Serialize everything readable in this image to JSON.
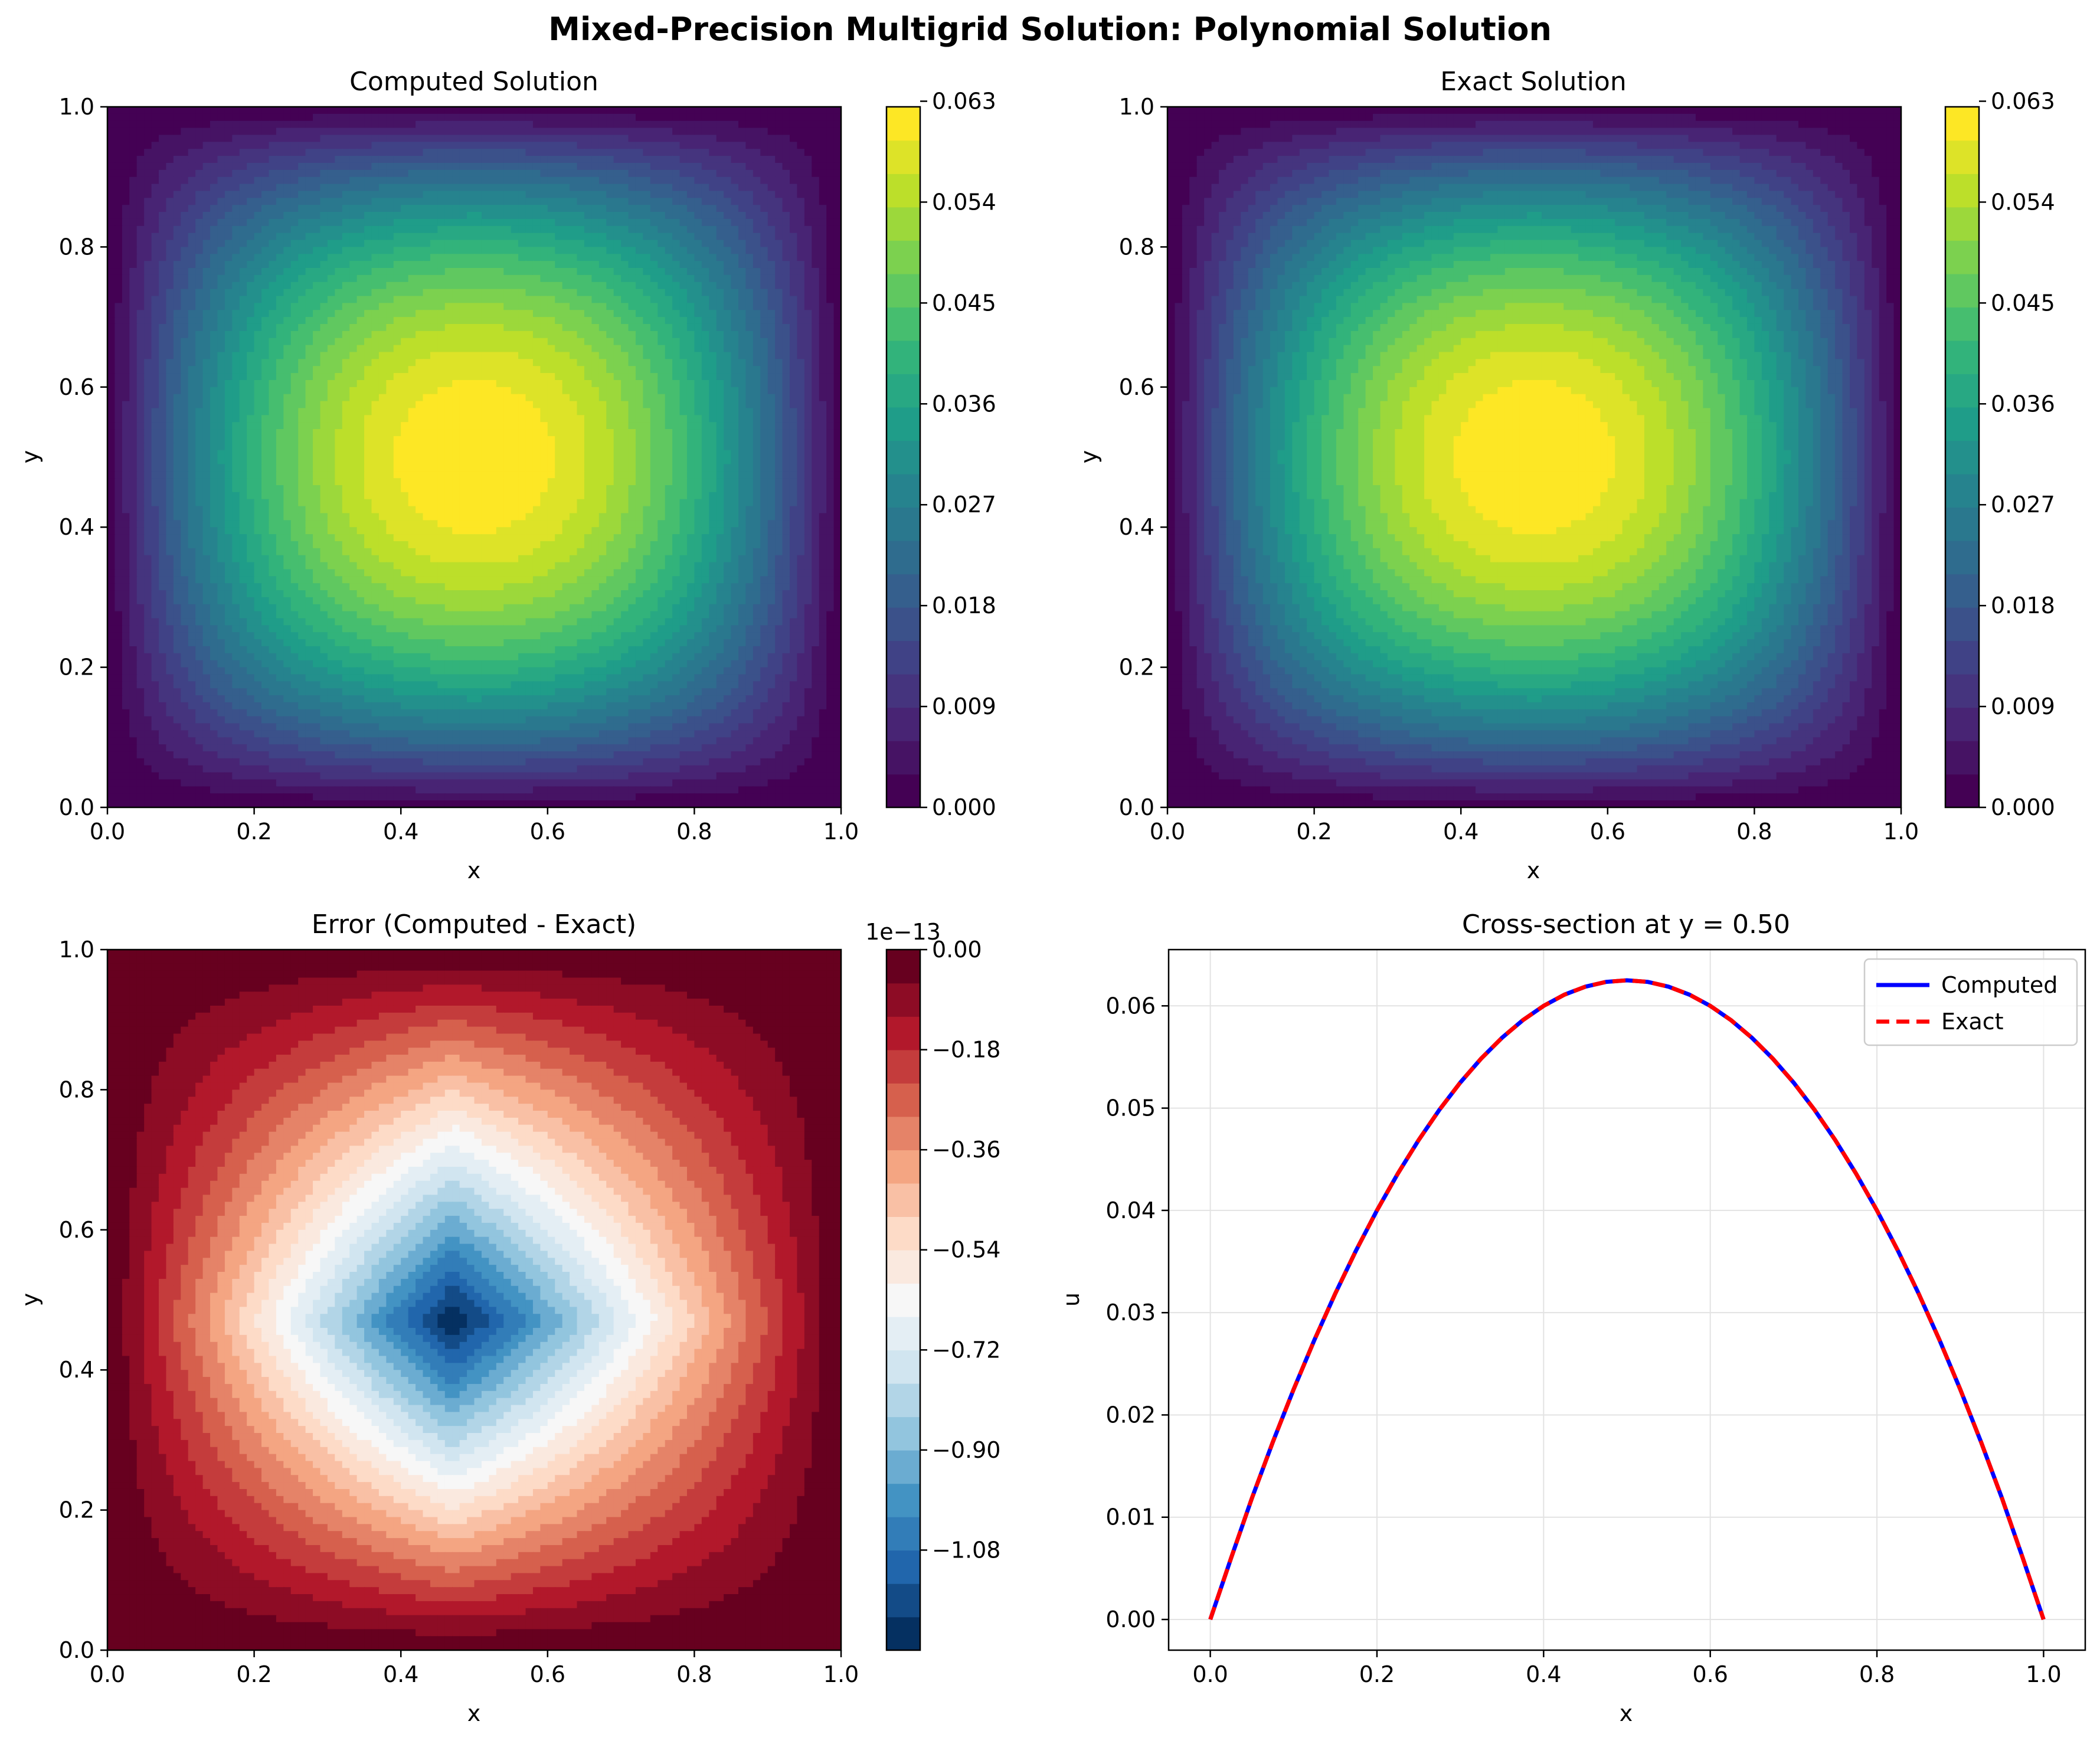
{
  "figure_title": "Mixed-Precision Multigrid Solution: Polynomial Solution",
  "chart_data": [
    {
      "type": "heatmap",
      "title": "Computed Solution",
      "xlabel": "x",
      "ylabel": "y",
      "xlim": [
        0,
        1
      ],
      "ylim": [
        0,
        1
      ],
      "x_ticks": [
        "0.0",
        "0.2",
        "0.4",
        "0.6",
        "0.8",
        "1.0"
      ],
      "y_ticks": [
        "0.0",
        "0.2",
        "0.4",
        "0.6",
        "0.8",
        "1.0"
      ],
      "function": "x(1-x)y(1-y)",
      "colormap": "viridis",
      "levels": 21,
      "value_range": [
        0,
        0.0625
      ],
      "colorbar_ticks": [
        "0.000",
        "0.009",
        "0.018",
        "0.027",
        "0.036",
        "0.045",
        "0.054",
        "0.063"
      ],
      "colorbar_tick_values": [
        0,
        0.009,
        0.018,
        0.027,
        0.036,
        0.045,
        0.054,
        0.063
      ]
    },
    {
      "type": "heatmap",
      "title": "Exact Solution",
      "xlabel": "x",
      "ylabel": "y",
      "xlim": [
        0,
        1
      ],
      "ylim": [
        0,
        1
      ],
      "x_ticks": [
        "0.0",
        "0.2",
        "0.4",
        "0.6",
        "0.8",
        "1.0"
      ],
      "y_ticks": [
        "0.0",
        "0.2",
        "0.4",
        "0.6",
        "0.8",
        "1.0"
      ],
      "function": "x(1-x)y(1-y)",
      "colormap": "viridis",
      "levels": 21,
      "value_range": [
        0,
        0.0625
      ],
      "colorbar_ticks": [
        "0.000",
        "0.009",
        "0.018",
        "0.027",
        "0.036",
        "0.045",
        "0.054",
        "0.063"
      ],
      "colorbar_tick_values": [
        0,
        0.009,
        0.018,
        0.027,
        0.036,
        0.045,
        0.054,
        0.063
      ]
    },
    {
      "type": "heatmap",
      "title": "Error (Computed - Exact)",
      "xlabel": "x",
      "ylabel": "y",
      "xlim": [
        0,
        1
      ],
      "ylim": [
        0,
        1
      ],
      "x_ticks": [
        "0.0",
        "0.2",
        "0.4",
        "0.6",
        "0.8",
        "1.0"
      ],
      "y_ticks": [
        "0.0",
        "0.2",
        "0.4",
        "0.6",
        "0.8",
        "1.0"
      ],
      "colormap": "RdBu",
      "levels": 21,
      "minimum_location": [
        0.47,
        0.47
      ],
      "value_range": [
        -1.26,
        0
      ],
      "colorbar_offset": "1e−13",
      "colorbar_ticks": [
        "0.00",
        "−0.18",
        "−0.36",
        "−0.54",
        "−0.72",
        "−0.90",
        "−1.08"
      ],
      "colorbar_tick_values": [
        0,
        -0.18,
        -0.36,
        -0.54,
        -0.72,
        -0.9,
        -1.08
      ]
    },
    {
      "type": "line",
      "title": "Cross-section at y = 0.50",
      "xlabel": "x",
      "ylabel": "u",
      "xlim": [
        -0.05,
        1.05
      ],
      "ylim": [
        -0.003,
        0.0655
      ],
      "x_ticks": [
        "0.0",
        "0.2",
        "0.4",
        "0.6",
        "0.8",
        "1.0"
      ],
      "x_tick_values": [
        0,
        0.2,
        0.4,
        0.6,
        0.8,
        1.0
      ],
      "y_ticks": [
        "0.00",
        "0.01",
        "0.02",
        "0.03",
        "0.04",
        "0.05",
        "0.06"
      ],
      "y_tick_values": [
        0,
        0.01,
        0.02,
        0.03,
        0.04,
        0.05,
        0.06
      ],
      "grid": true,
      "legend_position": "top-right",
      "x": [
        0.0,
        0.05,
        0.1,
        0.15,
        0.2,
        0.25,
        0.3,
        0.35,
        0.4,
        0.45,
        0.5,
        0.55,
        0.6,
        0.65,
        0.7,
        0.75,
        0.8,
        0.85,
        0.9,
        0.95,
        1.0
      ],
      "series": [
        {
          "name": "Computed",
          "color": "#0000ff",
          "style": "solid",
          "values": [
            0.0,
            0.011875,
            0.0225,
            0.031875,
            0.04,
            0.046875,
            0.0525,
            0.056875,
            0.06,
            0.061875,
            0.0625,
            0.061875,
            0.06,
            0.056875,
            0.0525,
            0.046875,
            0.04,
            0.031875,
            0.0225,
            0.011875,
            0.0
          ]
        },
        {
          "name": "Exact",
          "color": "#ff0000",
          "style": "dashed",
          "values": [
            0.0,
            0.011875,
            0.0225,
            0.031875,
            0.04,
            0.046875,
            0.0525,
            0.056875,
            0.06,
            0.061875,
            0.0625,
            0.061875,
            0.06,
            0.056875,
            0.0525,
            0.046875,
            0.04,
            0.031875,
            0.0225,
            0.011875,
            0.0
          ]
        }
      ]
    }
  ]
}
